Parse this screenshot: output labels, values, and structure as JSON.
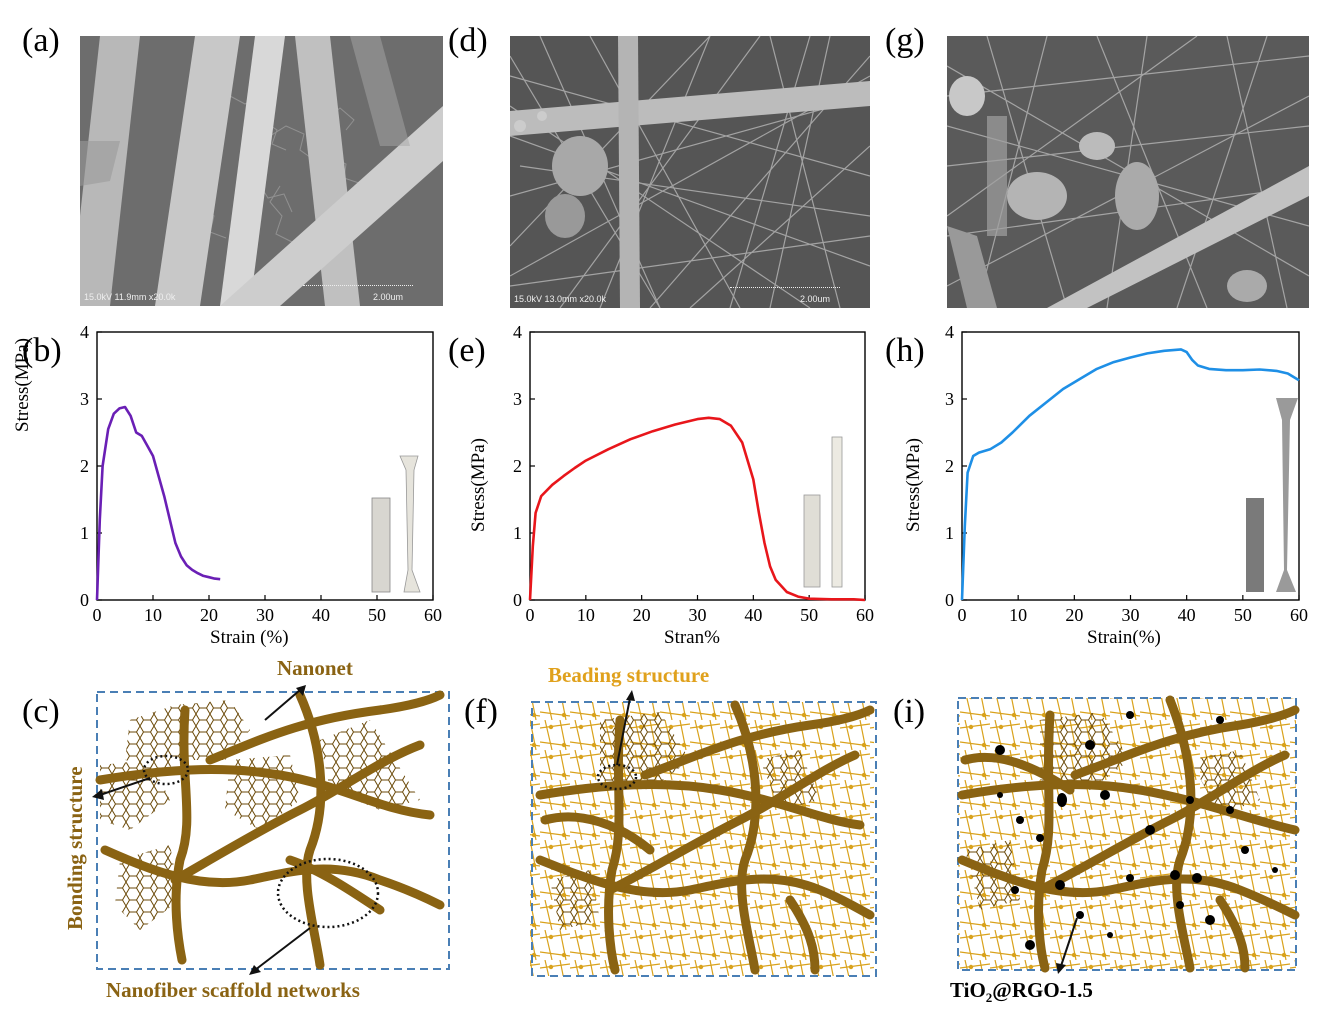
{
  "panels": {
    "a": "(a)",
    "b": "(b)",
    "c": "(c)",
    "d": "(d)",
    "e": "(e)",
    "f": "(f)",
    "g": "(g)",
    "h": "(h)",
    "i": "(i)"
  },
  "sem": {
    "a": {
      "info": "15.0kV 11.9mm x20.0k",
      "scale": "2.00um"
    },
    "d": {
      "info": "15.0kV 13.0mm x20.0k",
      "scale": "2.00um"
    }
  },
  "charts_text": {
    "b": {
      "xlabel": "Strain (%)",
      "ylabel": "Stress(MPa)"
    },
    "e": {
      "xlabel": "Stran%",
      "ylabel": "Stress(MPa)"
    },
    "h": {
      "xlabel": "Strain(%)",
      "ylabel": "Stress(MPa)"
    }
  },
  "chart_data": [
    {
      "id": "b",
      "type": "line",
      "xlabel": "Strain (%)",
      "ylabel": "Stress(MPa)",
      "xlim": [
        0,
        60
      ],
      "ylim": [
        0,
        4
      ],
      "xticks": [
        "0",
        "10",
        "20",
        "30",
        "40",
        "50",
        "60"
      ],
      "yticks": [
        "0",
        "1",
        "2",
        "3",
        "4"
      ],
      "color": "#6a1fb5",
      "x": [
        0,
        0.5,
        1,
        2,
        3,
        4,
        5,
        6,
        7,
        8,
        9,
        10,
        11,
        12,
        13,
        14,
        15,
        16,
        17,
        18,
        19,
        20,
        21,
        22
      ],
      "y": [
        0,
        1.2,
        2.0,
        2.55,
        2.78,
        2.86,
        2.88,
        2.75,
        2.5,
        2.45,
        2.3,
        2.15,
        1.85,
        1.55,
        1.2,
        0.85,
        0.65,
        0.52,
        0.45,
        0.4,
        0.36,
        0.34,
        0.32,
        0.31
      ]
    },
    {
      "id": "e",
      "type": "line",
      "xlabel": "Stran%",
      "ylabel": "Stress(MPa)",
      "xlim": [
        0,
        60
      ],
      "ylim": [
        0,
        4
      ],
      "xticks": [
        "0",
        "10",
        "20",
        "30",
        "40",
        "50",
        "60"
      ],
      "yticks": [
        "0",
        "1",
        "2",
        "3",
        "4"
      ],
      "color": "#e8161b",
      "x": [
        0,
        0.5,
        1,
        2,
        4,
        6,
        8,
        10,
        14,
        18,
        22,
        26,
        30,
        32,
        34,
        36,
        38,
        40,
        41,
        42,
        43,
        44,
        46,
        48,
        50,
        54,
        58,
        60
      ],
      "y": [
        0,
        0.8,
        1.3,
        1.55,
        1.72,
        1.85,
        1.97,
        2.08,
        2.25,
        2.4,
        2.52,
        2.62,
        2.7,
        2.72,
        2.7,
        2.6,
        2.35,
        1.8,
        1.3,
        0.85,
        0.5,
        0.3,
        0.12,
        0.05,
        0.02,
        0.01,
        0.01,
        0.0
      ]
    },
    {
      "id": "h",
      "type": "line",
      "xlabel": "Strain(%)",
      "ylabel": "Stress(MPa)",
      "xlim": [
        0,
        60
      ],
      "ylim": [
        0,
        4
      ],
      "xticks": [
        "0",
        "10",
        "20",
        "30",
        "40",
        "50",
        "60"
      ],
      "yticks": [
        "0",
        "1",
        "2",
        "3",
        "4"
      ],
      "color": "#1e8fe6",
      "x": [
        0,
        0.5,
        1,
        2,
        3,
        5,
        7,
        9,
        12,
        15,
        18,
        21,
        24,
        27,
        30,
        33,
        36,
        39,
        40,
        41,
        42,
        44,
        47,
        50,
        53,
        56,
        58,
        60
      ],
      "y": [
        0,
        1.1,
        1.9,
        2.15,
        2.2,
        2.25,
        2.35,
        2.5,
        2.75,
        2.95,
        3.15,
        3.3,
        3.45,
        3.55,
        3.62,
        3.68,
        3.72,
        3.74,
        3.7,
        3.58,
        3.5,
        3.45,
        3.43,
        3.43,
        3.44,
        3.42,
        3.38,
        3.28
      ]
    }
  ],
  "annotations": {
    "nanonet": "Nanonet",
    "bonding": "Bonding structure",
    "scaffold": "Nanofiber scaffold networks",
    "beading": "Beading structure",
    "tio2_main": "TiO",
    "tio2_sub": "2",
    "tio2_rest": "@RGO-1.5"
  },
  "colors": {
    "fiber": "#8a6313",
    "thin_fiber": "#d9a21c",
    "box_dash": "#4a7fb5",
    "annotation_text": "#8a6313",
    "beading_text": "#e0a11c"
  }
}
